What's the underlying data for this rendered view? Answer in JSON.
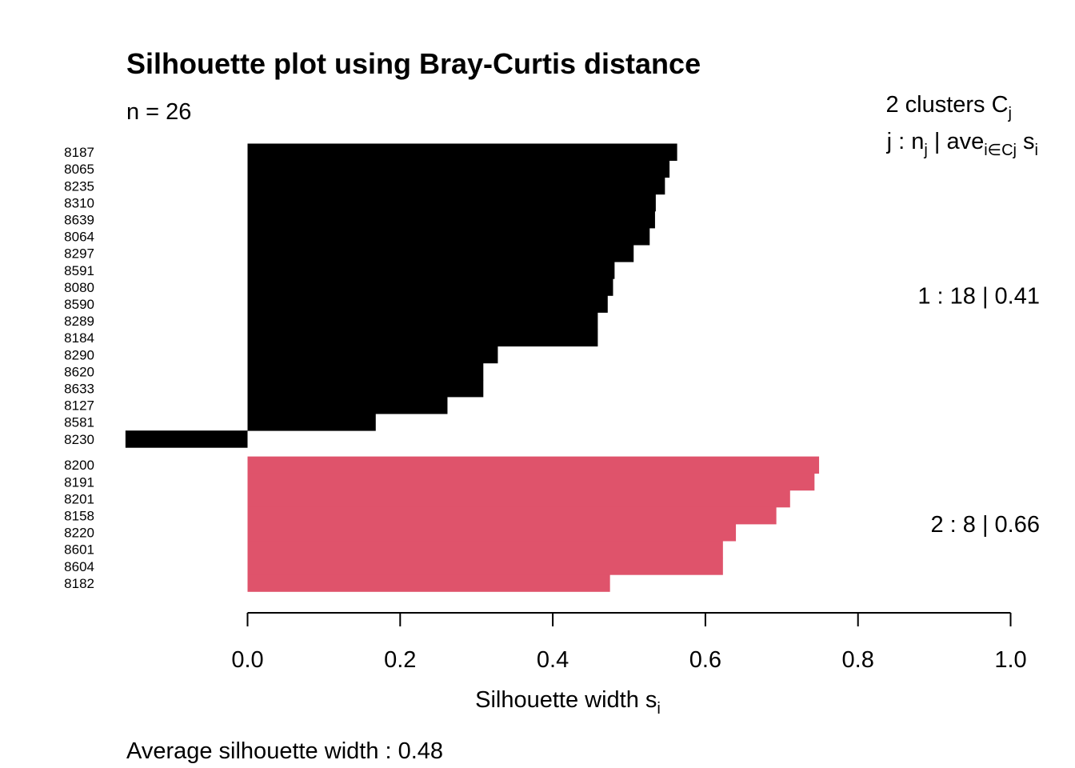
{
  "chart_data": {
    "type": "bar",
    "orientation": "horizontal",
    "title": "Silhouette plot using  Bray-Curtis  distance",
    "n_label": "n = 26",
    "clusters_header": {
      "line1_main": "2  clusters  C",
      "line1_sub": "j",
      "line2_prefix": "j :  n",
      "line2_sub1": "j",
      "line2_mid": " | ave",
      "line2_sub2": "i∈Cj",
      "line2_s": "  s",
      "line2_sub3": "i"
    },
    "xlabel_main": "Silhouette width s",
    "xlabel_sub": "i",
    "footer": "Average silhouette width :  0.48",
    "xlim": [
      0.0,
      1.0
    ],
    "x_ticks": [
      "0.0",
      "0.2",
      "0.4",
      "0.6",
      "0.8",
      "1.0"
    ],
    "clusters": [
      {
        "summary": "1 :   18  |  0.41",
        "color": "#000000",
        "labels": [
          "8187",
          "8065",
          "8235",
          "8310",
          "8639",
          "8064",
          "8297",
          "8591",
          "8080",
          "8590",
          "8289",
          "8184",
          "8290",
          "8620",
          "8633",
          "8127",
          "8581",
          "8230"
        ],
        "values": [
          0.563,
          0.553,
          0.547,
          0.535,
          0.534,
          0.527,
          0.506,
          0.481,
          0.479,
          0.472,
          0.459,
          0.459,
          0.328,
          0.309,
          0.309,
          0.262,
          0.168,
          -0.16
        ]
      },
      {
        "summary": "2 :   8  |  0.66",
        "color": "#DF536B",
        "labels": [
          "8200",
          "8191",
          "8201",
          "8158",
          "8220",
          "8601",
          "8604",
          "8182"
        ],
        "values": [
          0.749,
          0.743,
          0.711,
          0.693,
          0.64,
          0.623,
          0.623,
          0.475
        ]
      }
    ]
  }
}
